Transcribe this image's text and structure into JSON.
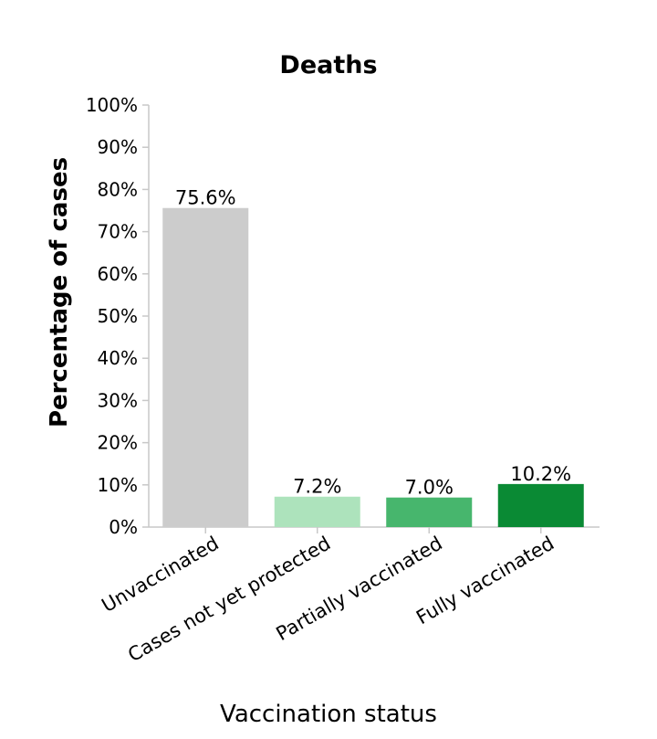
{
  "chart_data": {
    "type": "bar",
    "title": "Deaths",
    "xlabel": "Vaccination status",
    "ylabel": "Percentage of cases",
    "categories": [
      "Unvaccinated",
      "Cases not yet protected",
      "Partially vaccinated",
      "Fully vaccinated"
    ],
    "values": [
      75.6,
      7.2,
      7.0,
      10.2
    ],
    "value_labels": [
      "75.6%",
      "7.2%",
      "7.0%",
      "10.2%"
    ],
    "colors": [
      "#cccccc",
      "#ade3bc",
      "#47b66d",
      "#0a8a34"
    ],
    "ylim": [
      0,
      100
    ],
    "yticks": [
      0,
      10,
      20,
      30,
      40,
      50,
      60,
      70,
      80,
      90,
      100
    ],
    "ytick_labels": [
      "0%",
      "10%",
      "20%",
      "30%",
      "40%",
      "50%",
      "60%",
      "70%",
      "80%",
      "90%",
      "100%"
    ],
    "grid": false,
    "legend": "none"
  }
}
